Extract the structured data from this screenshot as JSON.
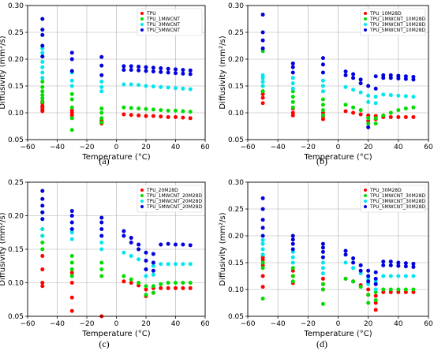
{
  "chart_data": [
    {
      "type": "scatter",
      "panel_label": "(a)",
      "xlabel": "Temperature (°C)",
      "ylabel": "Diffusivity (mm²/s)",
      "xlim": [
        -60,
        60
      ],
      "ylim": [
        0.05,
        0.3
      ],
      "xticks": [
        "−60",
        "−40",
        "−20",
        "0",
        "20",
        "40",
        "60"
      ],
      "yticks": [
        "0.05",
        "0.10",
        "0.15",
        "0.20",
        "0.25",
        "0.30"
      ],
      "grid": true,
      "legend_position": "top-right",
      "series": [
        {
          "name": "TPU",
          "color": "#ff0000",
          "x": [
            -50,
            -50,
            -50,
            -50,
            -50,
            -50,
            -30,
            -30,
            -30,
            -10,
            -10,
            -10,
            5,
            10,
            15,
            20,
            25,
            30,
            35,
            40,
            45,
            50
          ],
          "y": [
            0.103,
            0.106,
            0.11,
            0.113,
            0.118,
            0.121,
            0.095,
            0.1,
            0.104,
            0.08,
            0.083,
            0.086,
            0.097,
            0.096,
            0.095,
            0.094,
            0.094,
            0.093,
            0.092,
            0.092,
            0.091,
            0.09
          ]
        },
        {
          "name": "TPU_1MWCNT",
          "color": "#00dd00",
          "x": [
            -50,
            -50,
            -50,
            -50,
            -50,
            -50,
            -30,
            -30,
            -30,
            -30,
            -30,
            -10,
            -10,
            -10,
            -10,
            5,
            10,
            15,
            20,
            25,
            30,
            35,
            40,
            45,
            50
          ],
          "y": [
            0.12,
            0.127,
            0.133,
            0.14,
            0.148,
            0.158,
            0.068,
            0.09,
            0.11,
            0.125,
            0.135,
            0.082,
            0.09,
            0.1,
            0.108,
            0.11,
            0.109,
            0.108,
            0.107,
            0.106,
            0.105,
            0.104,
            0.104,
            0.103,
            0.102
          ]
        },
        {
          "name": "TPU_3MWCNT",
          "color": "#00e5ee",
          "x": [
            -50,
            -50,
            -50,
            -50,
            -50,
            -50,
            -50,
            -30,
            -30,
            -30,
            -10,
            -10,
            -10,
            5,
            10,
            15,
            20,
            25,
            30,
            35,
            40,
            45,
            50
          ],
          "y": [
            0.165,
            0.175,
            0.185,
            0.195,
            0.205,
            0.212,
            0.22,
            0.15,
            0.16,
            0.175,
            0.14,
            0.148,
            0.158,
            0.153,
            0.153,
            0.152,
            0.15,
            0.149,
            0.148,
            0.147,
            0.146,
            0.145,
            0.144
          ]
        },
        {
          "name": "TPU_5MWCNT",
          "color": "#0000dd",
          "x": [
            -50,
            -50,
            -50,
            -50,
            -50,
            -30,
            -30,
            -30,
            -10,
            -10,
            -10,
            5,
            5,
            10,
            10,
            15,
            15,
            20,
            20,
            25,
            25,
            30,
            30,
            35,
            35,
            40,
            40,
            45,
            45,
            50,
            50
          ],
          "y": [
            0.205,
            0.225,
            0.245,
            0.255,
            0.275,
            0.178,
            0.2,
            0.212,
            0.17,
            0.188,
            0.204,
            0.18,
            0.187,
            0.18,
            0.187,
            0.179,
            0.186,
            0.178,
            0.185,
            0.177,
            0.184,
            0.176,
            0.183,
            0.175,
            0.182,
            0.174,
            0.181,
            0.173,
            0.18,
            0.172,
            0.179
          ]
        }
      ]
    },
    {
      "type": "scatter",
      "panel_label": "(b)",
      "xlabel": "Temperature (°C)",
      "ylabel": "Diffusivity (mm²/s)",
      "xlim": [
        -60,
        60
      ],
      "ylim": [
        0.05,
        0.3
      ],
      "xticks": [
        "−60",
        "−40",
        "−20",
        "0",
        "20",
        "40",
        "60"
      ],
      "yticks": [
        "0.05",
        "0.10",
        "0.15",
        "0.20",
        "0.25",
        "0.30"
      ],
      "grid": true,
      "legend_position": "top-right",
      "series": [
        {
          "name": "TPU_10M28D",
          "color": "#ff0000",
          "x": [
            -50,
            -50,
            -50,
            -50,
            -30,
            -30,
            -30,
            -10,
            -10,
            -10,
            5,
            10,
            15,
            20,
            20,
            25,
            25,
            30,
            35,
            40,
            45,
            50
          ],
          "y": [
            0.118,
            0.128,
            0.135,
            0.14,
            0.095,
            0.1,
            0.108,
            0.088,
            0.093,
            0.1,
            0.103,
            0.1,
            0.097,
            0.085,
            0.095,
            0.088,
            0.094,
            0.092,
            0.092,
            0.092,
            0.092,
            0.092
          ]
        },
        {
          "name": "TPU_1MWCNT_10M28D",
          "color": "#00dd00",
          "x": [
            -50,
            -50,
            -50,
            -30,
            -30,
            -30,
            -30,
            -10,
            -10,
            -10,
            -10,
            5,
            10,
            15,
            20,
            20,
            25,
            25,
            30,
            35,
            40,
            45,
            50
          ],
          "y": [
            0.14,
            0.15,
            0.215,
            0.11,
            0.12,
            0.13,
            0.14,
            0.095,
            0.105,
            0.115,
            0.125,
            0.115,
            0.11,
            0.105,
            0.08,
            0.09,
            0.08,
            0.09,
            0.095,
            0.1,
            0.105,
            0.108,
            0.11
          ]
        },
        {
          "name": "TPU_3MWCNT_10M28D",
          "color": "#00e5ee",
          "x": [
            -50,
            -50,
            -50,
            -50,
            -30,
            -30,
            -30,
            -10,
            -10,
            -10,
            5,
            10,
            15,
            20,
            20,
            25,
            25,
            30,
            35,
            40,
            45,
            50
          ],
          "y": [
            0.15,
            0.158,
            0.165,
            0.17,
            0.145,
            0.155,
            0.165,
            0.14,
            0.15,
            0.16,
            0.148,
            0.143,
            0.138,
            0.12,
            0.132,
            0.118,
            0.13,
            0.134,
            0.133,
            0.132,
            0.131,
            0.13
          ]
        },
        {
          "name": "TPU_5MWCNT_10M28D",
          "color": "#0000dd",
          "x": [
            -50,
            -50,
            -50,
            -50,
            -30,
            -30,
            -30,
            -10,
            -10,
            -10,
            5,
            5,
            10,
            10,
            15,
            15,
            20,
            20,
            25,
            25,
            30,
            30,
            35,
            35,
            40,
            40,
            45,
            45,
            50,
            50
          ],
          "y": [
            0.22,
            0.235,
            0.25,
            0.283,
            0.175,
            0.185,
            0.192,
            0.175,
            0.19,
            0.202,
            0.17,
            0.177,
            0.165,
            0.172,
            0.155,
            0.162,
            0.073,
            0.15,
            0.145,
            0.168,
            0.165,
            0.17,
            0.165,
            0.17,
            0.164,
            0.169,
            0.163,
            0.168,
            0.162,
            0.167
          ]
        }
      ]
    },
    {
      "type": "scatter",
      "panel_label": "(c)",
      "xlabel": "Temperature (°C)",
      "ylabel": "Diffusivity (mm²/s)",
      "xlim": [
        -60,
        60
      ],
      "ylim": [
        0.05,
        0.25
      ],
      "xticks": [
        "−60",
        "−40",
        "−20",
        "0",
        "20",
        "40",
        "60"
      ],
      "yticks": [
        "0.05",
        "0.10",
        "0.15",
        "0.20",
        "0.25"
      ],
      "grid": true,
      "legend_position": "top-right",
      "series": [
        {
          "name": "TPU_20M28D",
          "color": "#ff0000",
          "x": [
            -50,
            -50,
            -50,
            -50,
            -30,
            -30,
            -30,
            -30,
            -10,
            5,
            10,
            15,
            20,
            20,
            25,
            25,
            30,
            35,
            40,
            45,
            50
          ],
          "y": [
            0.095,
            0.1,
            0.12,
            0.14,
            0.058,
            0.078,
            0.1,
            0.115,
            0.05,
            0.102,
            0.1,
            0.096,
            0.08,
            0.09,
            0.085,
            0.092,
            0.092,
            0.092,
            0.092,
            0.092,
            0.092
          ]
        },
        {
          "name": "TPU_1MWCNT_20M28D",
          "color": "#00dd00",
          "x": [
            -50,
            -50,
            -50,
            -50,
            -30,
            -30,
            -30,
            -30,
            -10,
            -10,
            -10,
            5,
            10,
            15,
            20,
            20,
            25,
            25,
            30,
            35,
            40,
            45,
            50
          ],
          "y": [
            0.15,
            0.16,
            0.17,
            0.18,
            0.11,
            0.12,
            0.13,
            0.14,
            0.11,
            0.12,
            0.13,
            0.11,
            0.105,
            0.1,
            0.082,
            0.095,
            0.085,
            0.095,
            0.098,
            0.1,
            0.1,
            0.1,
            0.1
          ]
        },
        {
          "name": "TPU_3MWCNT_20M28D",
          "color": "#00e5ee",
          "x": [
            -50,
            -50,
            -50,
            -50,
            -30,
            -30,
            -30,
            -10,
            -10,
            -10,
            5,
            10,
            15,
            20,
            20,
            25,
            25,
            30,
            35,
            40,
            45,
            50
          ],
          "y": [
            0.17,
            0.18,
            0.195,
            0.205,
            0.165,
            0.175,
            0.18,
            0.15,
            0.16,
            0.17,
            0.145,
            0.14,
            0.135,
            0.11,
            0.12,
            0.112,
            0.125,
            0.128,
            0.128,
            0.128,
            0.128,
            0.128
          ]
        },
        {
          "name": "TPU_5MWCNT_20M28D",
          "color": "#0000dd",
          "x": [
            -50,
            -50,
            -50,
            -50,
            -50,
            -30,
            -30,
            -30,
            -30,
            -10,
            -10,
            -10,
            -10,
            5,
            5,
            10,
            10,
            15,
            15,
            20,
            20,
            20,
            25,
            25,
            25,
            30,
            35,
            40,
            45,
            50
          ],
          "y": [
            0.195,
            0.205,
            0.215,
            0.225,
            0.237,
            0.18,
            0.19,
            0.2,
            0.207,
            0.17,
            0.18,
            0.19,
            0.197,
            0.17,
            0.177,
            0.16,
            0.167,
            0.15,
            0.157,
            0.12,
            0.133,
            0.145,
            0.118,
            0.13,
            0.143,
            0.157,
            0.158,
            0.157,
            0.157,
            0.156
          ]
        }
      ]
    },
    {
      "type": "scatter",
      "panel_label": "(d)",
      "xlabel": "Temperature (°C)",
      "ylabel": "Diffusivity (mm²/s)",
      "xlim": [
        -60,
        60
      ],
      "ylim": [
        0.05,
        0.3
      ],
      "xticks": [
        "−60",
        "−40",
        "−20",
        "0",
        "20",
        "40",
        "60"
      ],
      "yticks": [
        "0.05",
        "0.10",
        "0.15",
        "0.20",
        "0.25",
        "0.30"
      ],
      "grid": true,
      "legend_position": "top-right",
      "series": [
        {
          "name": "TPU_30M28D",
          "color": "#ff0000",
          "x": [
            -50,
            -50,
            -50,
            -50,
            -50,
            -30,
            -30,
            -30,
            -10,
            -10,
            -10,
            5,
            10,
            15,
            20,
            20,
            25,
            25,
            25,
            30,
            35,
            40,
            45,
            50
          ],
          "y": [
            0.105,
            0.125,
            0.145,
            0.155,
            0.16,
            0.112,
            0.125,
            0.135,
            0.1,
            0.11,
            0.12,
            0.12,
            0.115,
            0.108,
            0.09,
            0.1,
            0.062,
            0.075,
            0.088,
            0.095,
            0.095,
            0.095,
            0.095,
            0.095
          ]
        },
        {
          "name": "TPU_1MWCNT_30M28D",
          "color": "#00dd00",
          "x": [
            -50,
            -50,
            -50,
            -50,
            -30,
            -30,
            -30,
            -10,
            -10,
            -10,
            5,
            10,
            15,
            20,
            20,
            25,
            25,
            30,
            35,
            40,
            45,
            50
          ],
          "y": [
            0.083,
            0.14,
            0.15,
            0.165,
            0.115,
            0.125,
            0.14,
            0.073,
            0.1,
            0.11,
            0.12,
            0.115,
            0.105,
            0.075,
            0.09,
            0.08,
            0.095,
            0.1,
            0.1,
            0.1,
            0.1,
            0.1
          ]
        },
        {
          "name": "TPU_3MWCNT_30M28D",
          "color": "#00e5ee",
          "x": [
            -50,
            -50,
            -50,
            -50,
            -30,
            -30,
            -30,
            -10,
            -10,
            -10,
            5,
            10,
            15,
            20,
            20,
            25,
            25,
            30,
            35,
            40,
            45,
            50
          ],
          "y": [
            0.165,
            0.175,
            0.185,
            0.192,
            0.15,
            0.16,
            0.17,
            0.13,
            0.14,
            0.15,
            0.15,
            0.14,
            0.13,
            0.11,
            0.12,
            0.1,
            0.115,
            0.125,
            0.125,
            0.125,
            0.125,
            0.125
          ]
        },
        {
          "name": "TPU_5MWCNT_30M28D",
          "color": "#0000dd",
          "x": [
            -50,
            -50,
            -50,
            -50,
            -50,
            -30,
            -30,
            -30,
            -30,
            -10,
            -10,
            -10,
            -10,
            5,
            5,
            10,
            10,
            15,
            15,
            20,
            20,
            20,
            25,
            25,
            25,
            30,
            30,
            35,
            35,
            40,
            40,
            45,
            45,
            50,
            50
          ],
          "y": [
            0.2,
            0.215,
            0.23,
            0.25,
            0.27,
            0.175,
            0.185,
            0.193,
            0.2,
            0.16,
            0.17,
            0.178,
            0.185,
            0.165,
            0.172,
            0.15,
            0.158,
            0.135,
            0.145,
            0.115,
            0.125,
            0.135,
            0.11,
            0.12,
            0.132,
            0.145,
            0.152,
            0.145,
            0.152,
            0.144,
            0.15,
            0.143,
            0.149,
            0.142,
            0.148
          ]
        }
      ]
    }
  ]
}
